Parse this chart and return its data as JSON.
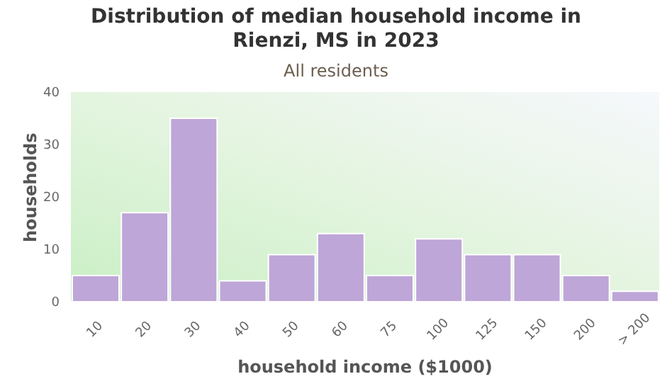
{
  "chart_data": {
    "type": "bar",
    "title": "Distribution of median household income in Rienzi, MS in 2023",
    "subtitle": "All residents",
    "xlabel": "household income ($1000)",
    "ylabel": "households",
    "categories": [
      "10",
      "20",
      "30",
      "40",
      "50",
      "60",
      "75",
      "100",
      "125",
      "150",
      "200",
      "> 200"
    ],
    "values": [
      5,
      17,
      35,
      4,
      9,
      13,
      5,
      12,
      9,
      9,
      5,
      2
    ],
    "color": "#bea6d8",
    "ylim": [
      0,
      40
    ],
    "yticks": [
      0,
      10,
      20,
      30,
      40
    ],
    "grid": false,
    "legend": false
  }
}
